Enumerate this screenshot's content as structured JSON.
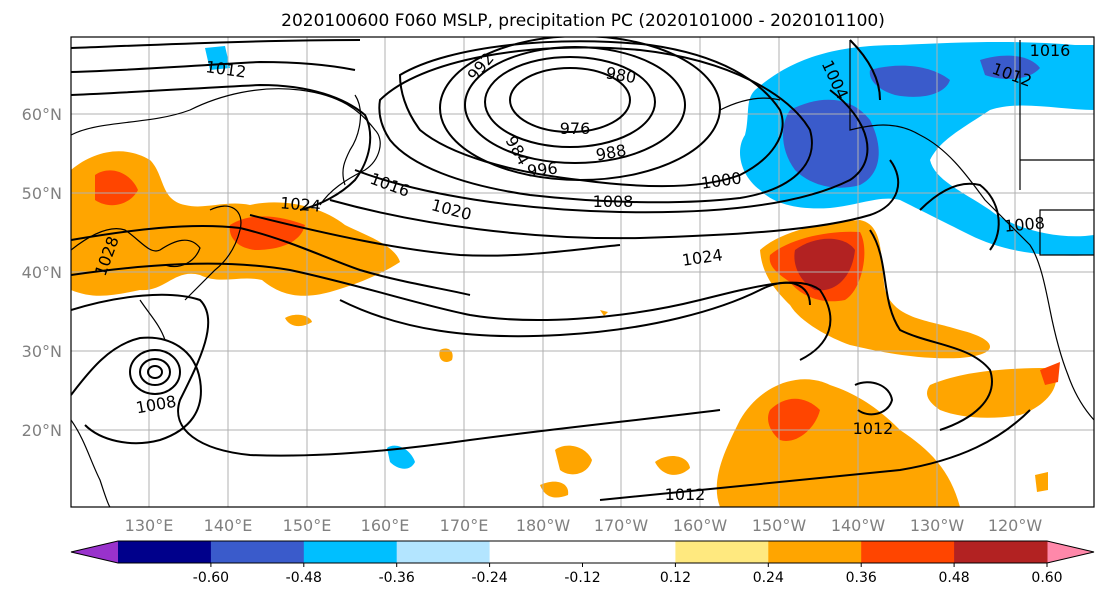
{
  "title": "2020100600 F060 MSLP, precipitation PC (2020101000 - 2020101100)",
  "lat_labels": [
    "60°N",
    "50°N",
    "40°N",
    "30°N",
    "20°N"
  ],
  "lon_labels": [
    "130°E",
    "140°E",
    "150°E",
    "160°E",
    "170°E",
    "180°W",
    "170°W",
    "160°W",
    "150°W",
    "140°W",
    "130°W",
    "120°W"
  ],
  "colorbar": {
    "colors": [
      "#9932cc",
      "#00008b",
      "#3a5bcb",
      "#00bfff",
      "#b3e5ff",
      "#ffffff",
      "#ffffff",
      "#ffe97f",
      "#ffa500",
      "#ff4500",
      "#b22222",
      "#ff88aa"
    ],
    "tick_labels": [
      "-0.60",
      "-0.48",
      "-0.36",
      "-0.24",
      "-0.12",
      "0.12",
      "0.24",
      "0.36",
      "0.48",
      "0.60"
    ]
  },
  "isobar_labels": [
    "1012",
    "992",
    "980",
    "976",
    "984",
    "988",
    "996",
    "1000",
    "1008",
    "1016",
    "1020",
    "1024",
    "1024",
    "1028",
    "1008",
    "1004",
    "1012",
    "1016",
    "1008",
    "1012",
    "1012"
  ]
}
